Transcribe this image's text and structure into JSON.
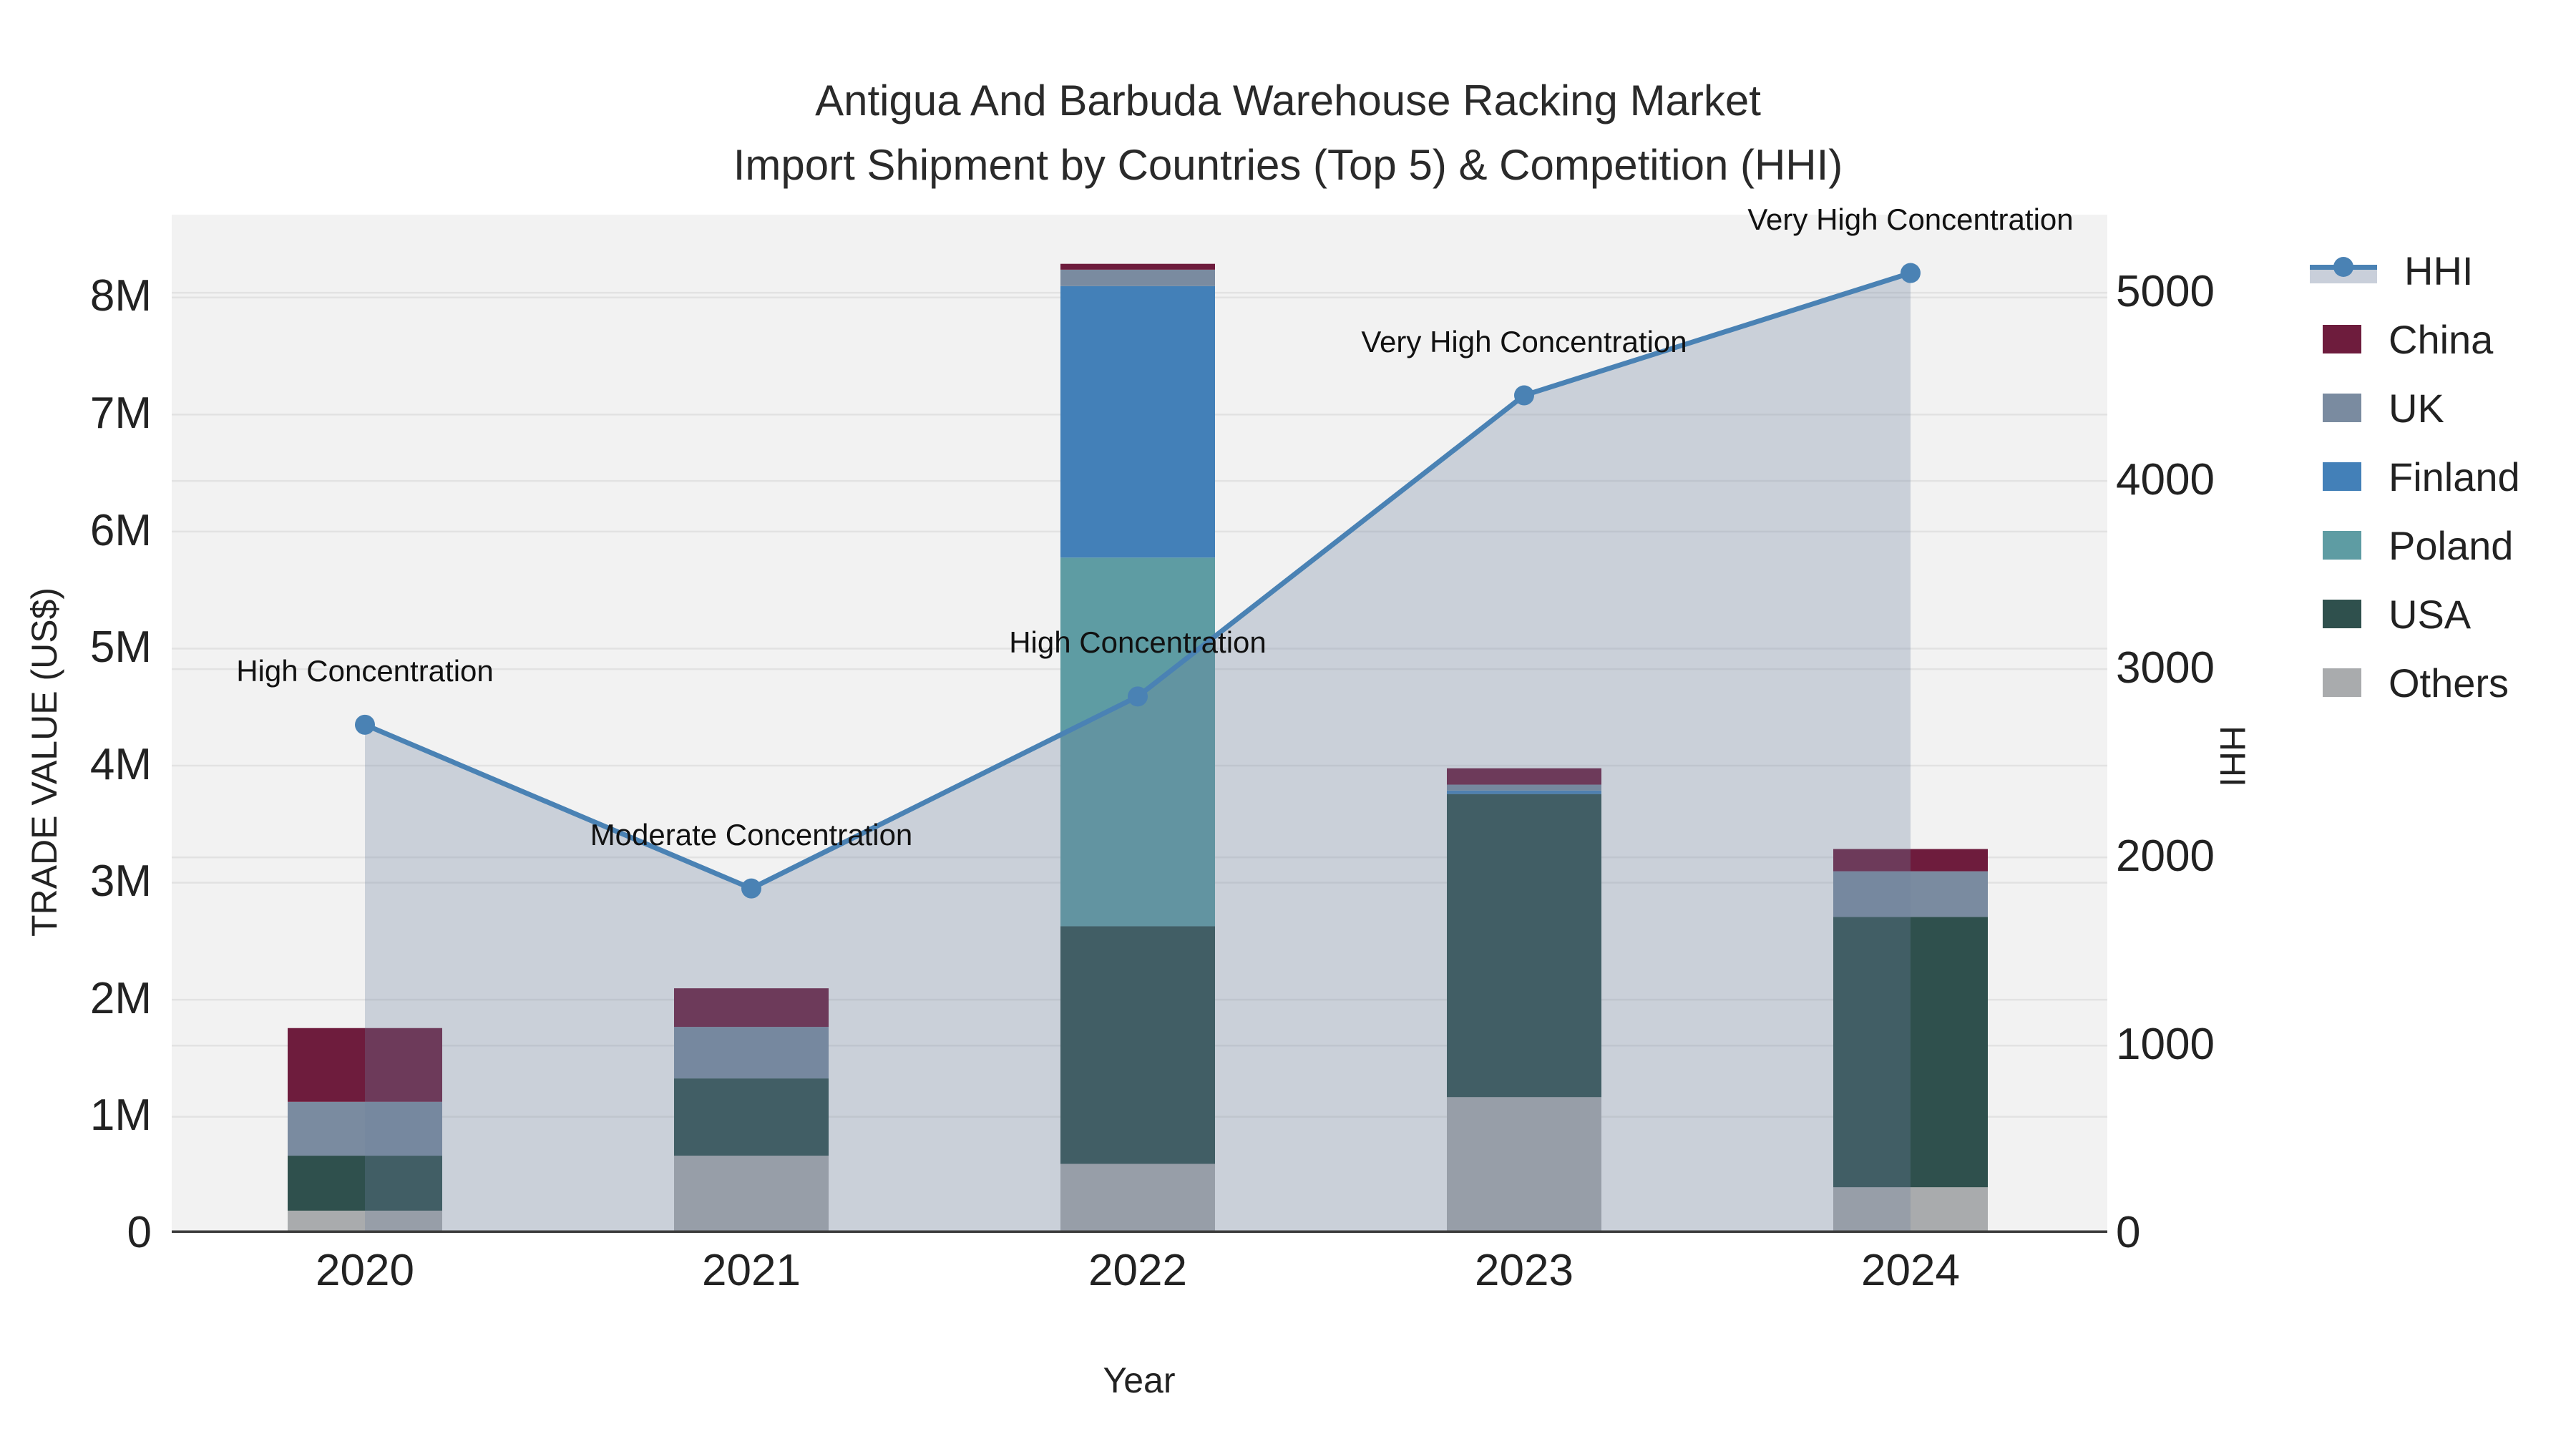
{
  "title": {
    "line1": "Antigua And Barbuda Warehouse Racking Market",
    "line2": "Import Shipment by Countries (Top 5) & Competition (HHI)"
  },
  "colors": {
    "plot_bg": "#F2F2F2",
    "gridline": "#E2E2E2",
    "axis_line": "#3C3C3C",
    "hhi_line": "#4A82B4",
    "hhi_fill": "rgba(108,130,160,0.30)",
    "china": "#6E1C3D",
    "uk": "#7A8BA0",
    "finland": "#4380B8",
    "poland": "#5E9CA3",
    "usa": "#2F504D",
    "others": "#A9ABAD"
  },
  "chart_data": {
    "type": "bar",
    "subtype": "stacked-bars-with-line-overlay",
    "title": "Antigua And Barbuda Warehouse Racking Market Import Shipment by Countries (Top 5) & Competition (HHI)",
    "xlabel": "Year",
    "ylabel_left": "TRADE VALUE (US$)",
    "ylabel_right": "HHI",
    "categories": [
      "2020",
      "2021",
      "2022",
      "2023",
      "2024"
    ],
    "trade_value_units": "millions USD",
    "series": [
      {
        "name": "Others",
        "color_key": "others",
        "values": [
          0.19,
          0.66,
          0.59,
          1.16,
          0.39
        ]
      },
      {
        "name": "USA",
        "color_key": "usa",
        "values": [
          0.47,
          0.66,
          2.03,
          2.59,
          2.31
        ]
      },
      {
        "name": "Poland",
        "color_key": "poland",
        "values": [
          0,
          0,
          3.15,
          0,
          0
        ]
      },
      {
        "name": "Finland",
        "color_key": "finland",
        "values": [
          0,
          0,
          2.32,
          0.03,
          0
        ]
      },
      {
        "name": "UK",
        "color_key": "uk",
        "values": [
          0.46,
          0.44,
          0.14,
          0.05,
          0.39
        ]
      },
      {
        "name": "China",
        "color_key": "china",
        "values": [
          0.63,
          0.33,
          0.05,
          0.14,
          0.19
        ]
      }
    ],
    "bar_totals": [
      1.75,
      2.09,
      8.28,
      3.97,
      3.28
    ],
    "line_series": {
      "name": "HHI",
      "type": "line",
      "fill": "tozeroy",
      "values": [
        2700,
        1830,
        2850,
        4450,
        5100
      ]
    },
    "annotations": [
      {
        "year": "2020",
        "text": "High Concentration"
      },
      {
        "year": "2021",
        "text": "Moderate Concentration"
      },
      {
        "year": "2022",
        "text": "High Concentration"
      },
      {
        "year": "2023",
        "text": "Very High Concentration"
      },
      {
        "year": "2024",
        "text": "Very High Concentration"
      }
    ],
    "y_left_ticks": [
      "0",
      "1M",
      "2M",
      "3M",
      "4M",
      "5M",
      "6M",
      "7M",
      "8M"
    ],
    "y_left_tick_values_m": [
      0,
      1,
      2,
      3,
      4,
      5,
      6,
      7,
      8
    ],
    "y_left_range_m": [
      0,
      8.7
    ],
    "y_right_ticks": [
      "0",
      "1000",
      "2000",
      "3000",
      "4000",
      "5000"
    ],
    "y_right_tick_values": [
      0,
      1000,
      2000,
      3000,
      4000,
      5000
    ],
    "y_right_range": [
      0,
      5410
    ],
    "grid": true,
    "legend_position": "right",
    "legend_order": [
      "HHI",
      "China",
      "UK",
      "Finland",
      "Poland",
      "USA",
      "Others"
    ]
  }
}
